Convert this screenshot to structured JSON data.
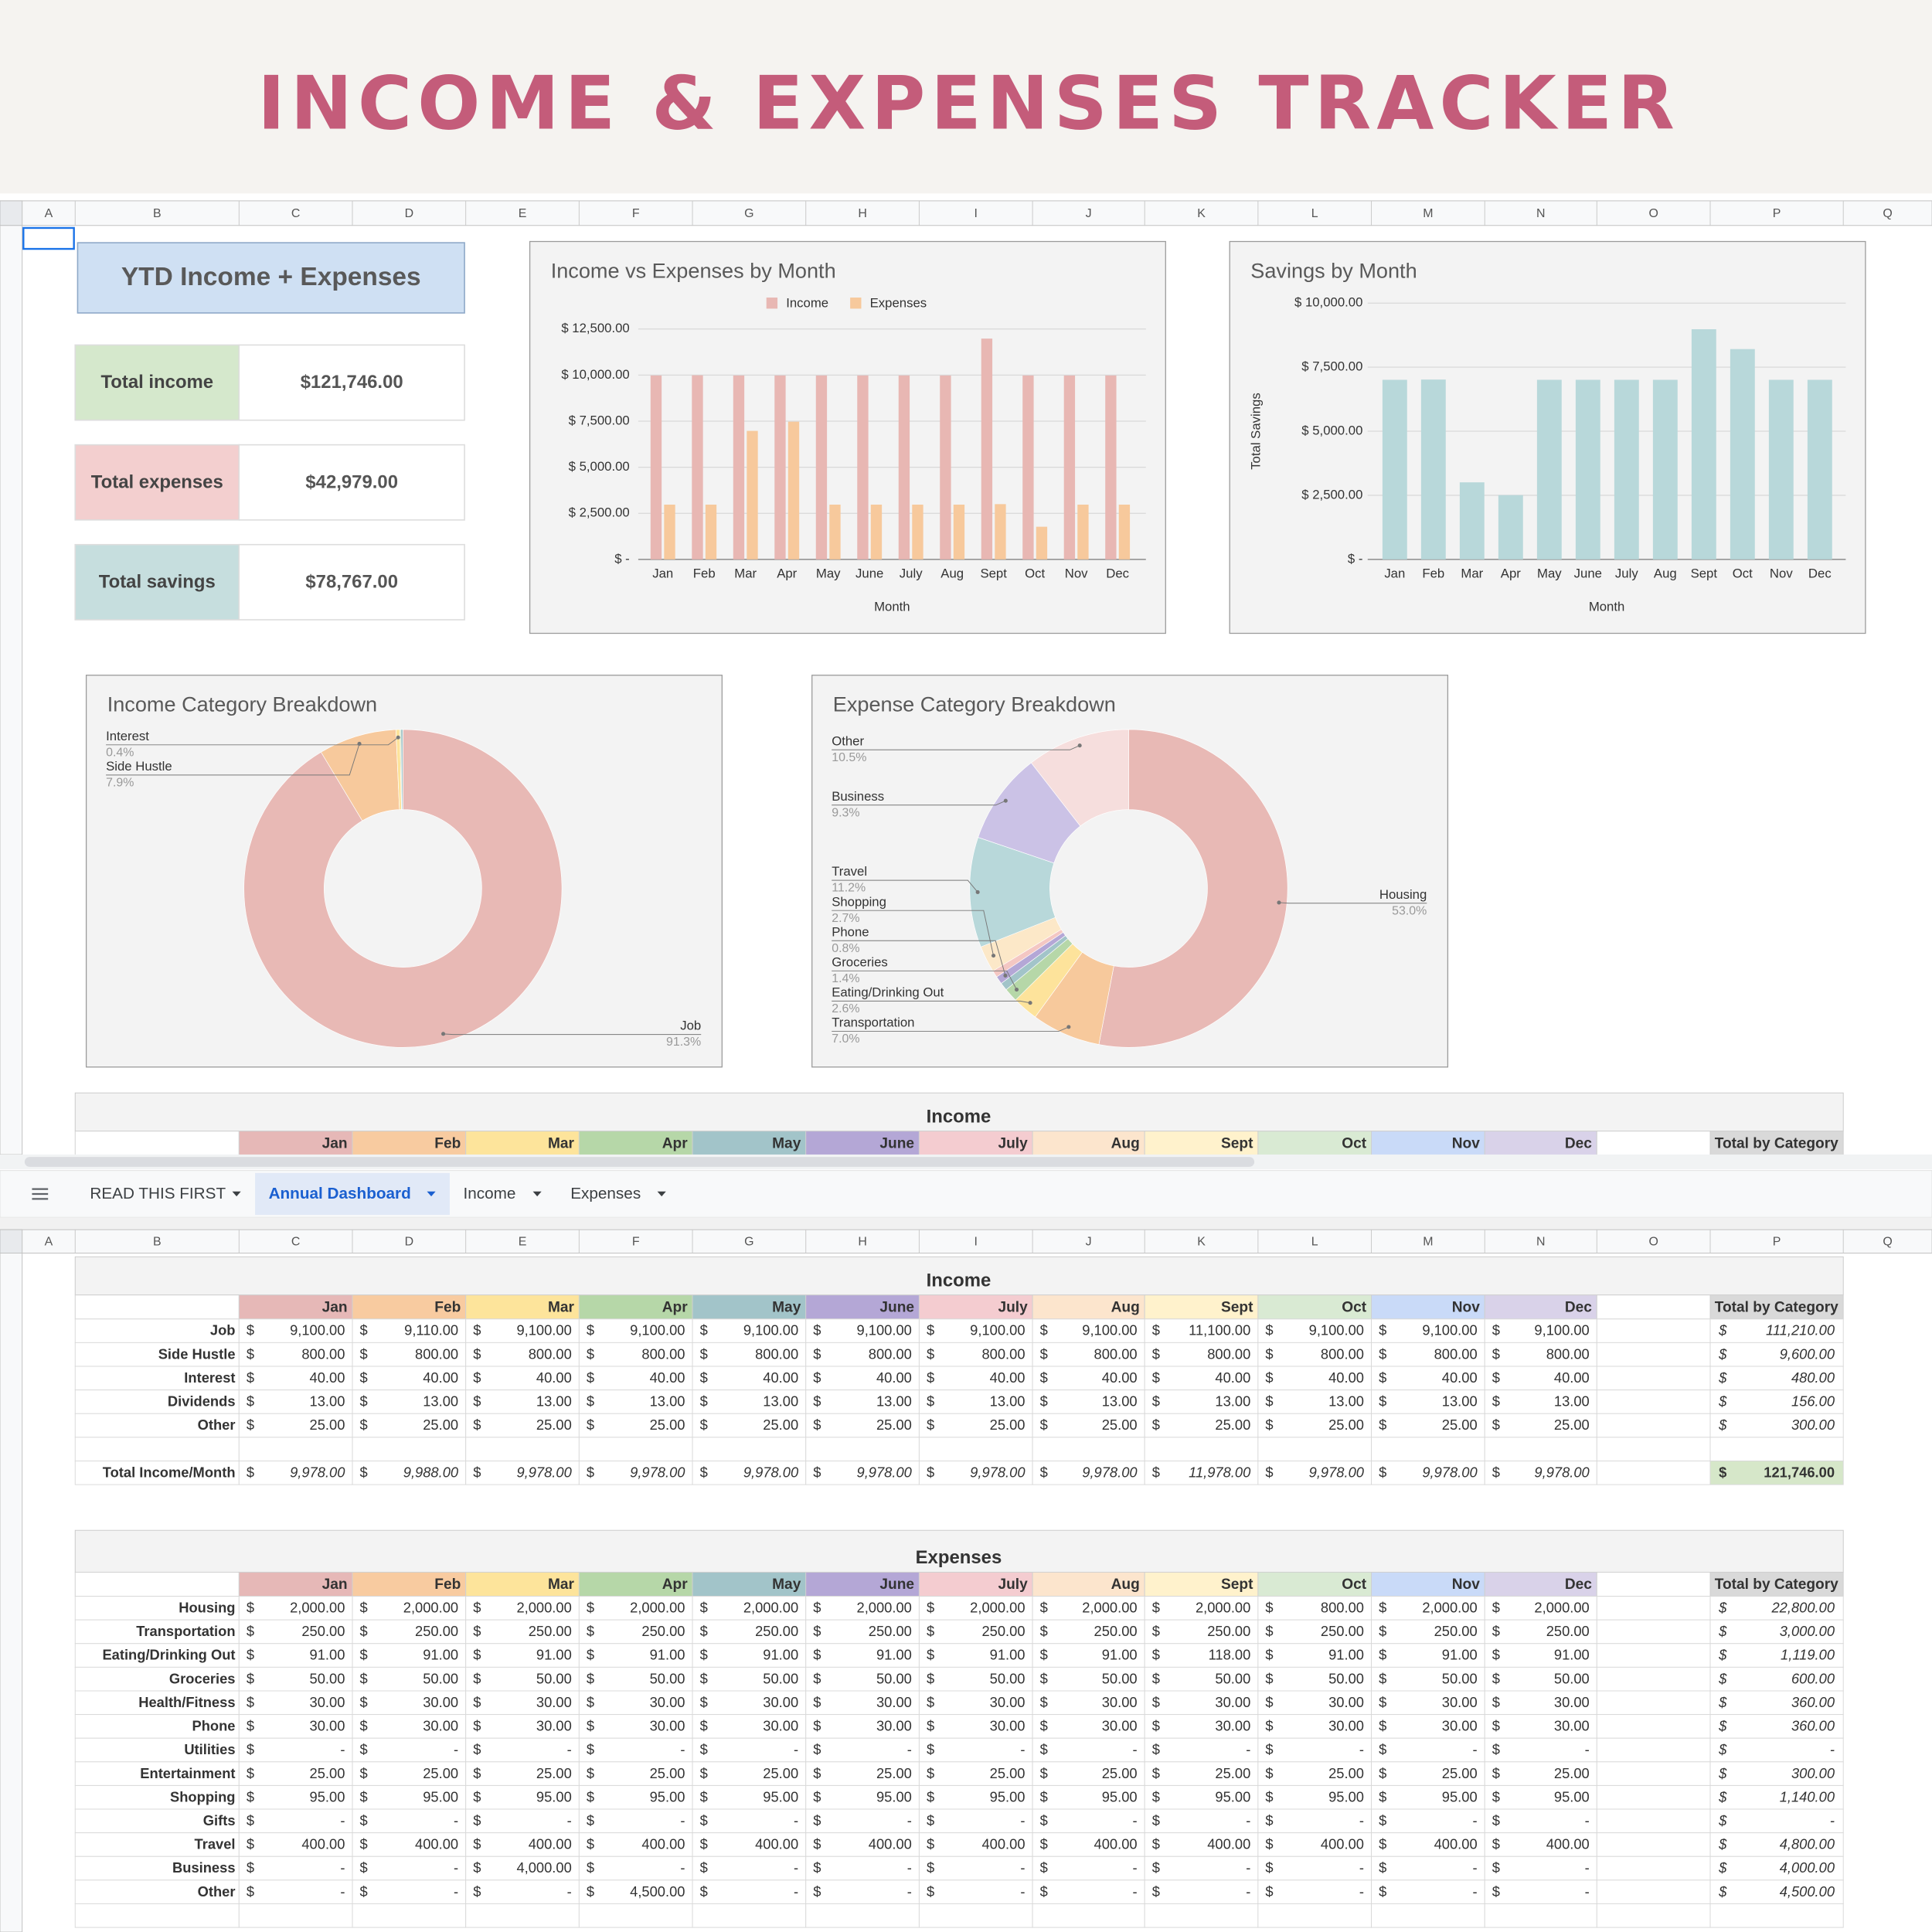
{
  "header": {
    "title": "INCOME & EXPENSES TRACKER"
  },
  "columns": [
    "A",
    "B",
    "C",
    "D",
    "E",
    "F",
    "G",
    "H",
    "I",
    "J",
    "K",
    "L",
    "M",
    "N",
    "O",
    "P",
    "Q"
  ],
  "summary": {
    "title": "YTD Income + Expenses",
    "items": [
      {
        "label": "Total income",
        "value": "$121,746.00"
      },
      {
        "label": "Total expenses",
        "value": "$42,979.00"
      },
      {
        "label": "Total savings",
        "value": "$78,767.00"
      }
    ]
  },
  "chart_data": [
    {
      "type": "bar",
      "title": "Income vs Expenses by Month",
      "x_label": "Month",
      "categories": [
        "Jan",
        "Feb",
        "Mar",
        "Apr",
        "May",
        "June",
        "July",
        "Aug",
        "Sept",
        "Oct",
        "Nov",
        "Dec"
      ],
      "series": [
        {
          "name": "Income",
          "color": "#e8b7b3",
          "values": [
            9978,
            9988,
            9978,
            9978,
            9978,
            9978,
            9978,
            9978,
            11978,
            9978,
            9978,
            9978
          ]
        },
        {
          "name": "Expenses",
          "color": "#f7c99c",
          "values": [
            2971,
            2971,
            6971,
            7471,
            2971,
            2971,
            2971,
            2971,
            2998,
            1771,
            2971,
            2971
          ]
        }
      ],
      "ylim": [
        0,
        12500
      ],
      "yticks": [
        {
          "value": 0,
          "label": "$ -"
        },
        {
          "value": 2500,
          "label": "$ 2,500.00"
        },
        {
          "value": 5000,
          "label": "$ 5,000.00"
        },
        {
          "value": 7500,
          "label": "$ 7,500.00"
        },
        {
          "value": 10000,
          "label": "$ 10,000.00"
        },
        {
          "value": 12500,
          "label": "$ 12,500.00"
        }
      ],
      "grid": true,
      "legend": "top"
    },
    {
      "type": "bar",
      "title": "Savings by Month",
      "x_label": "Month",
      "y_label": "Total Savings",
      "categories": [
        "Jan",
        "Feb",
        "Mar",
        "Apr",
        "May",
        "June",
        "July",
        "Aug",
        "Sept",
        "Oct",
        "Nov",
        "Dec"
      ],
      "values": [
        7007,
        7017,
        3007,
        2507,
        7007,
        7007,
        7007,
        7007,
        8980,
        8207,
        7007,
        7007
      ],
      "color": "#b8d8da",
      "ylim": [
        0,
        10000
      ],
      "yticks": [
        {
          "value": 0,
          "label": "$ -"
        },
        {
          "value": 2500,
          "label": "$ 2,500.00"
        },
        {
          "value": 5000,
          "label": "$ 5,000.00"
        },
        {
          "value": 7500,
          "label": "$ 7,500.00"
        },
        {
          "value": 10000,
          "label": "$ 10,000.00"
        }
      ],
      "grid": true
    },
    {
      "type": "donut",
      "title": "Income Category Breakdown",
      "categories": [
        "Job",
        "Side Hustle",
        "Interest",
        null,
        null
      ],
      "values": [
        91.3,
        7.9,
        0.4,
        0.1,
        0.2
      ],
      "value_labels": [
        "91.3%",
        "7.9%",
        "0.4%",
        null,
        null
      ],
      "colors": [
        "#e8b9b5",
        "#f7c99c",
        "#fde39b",
        "#b6d7a8",
        "#a2c4c9"
      ]
    },
    {
      "type": "donut",
      "title": "Expense Category Breakdown",
      "categories": [
        "Housing",
        "Transportation",
        "Eating/Drinking Out",
        "Groceries",
        null,
        "Phone",
        null,
        "Shopping",
        "Travel",
        "Business",
        "Other"
      ],
      "values": [
        53.0,
        7.0,
        2.6,
        1.4,
        0.8,
        0.8,
        0.7,
        2.7,
        11.2,
        9.3,
        10.5
      ],
      "value_labels": [
        "53.0%",
        "7.0%",
        "2.6%",
        "1.4%",
        null,
        "0.8%",
        null,
        "2.7%",
        "11.2%",
        "9.3%",
        "10.5%"
      ],
      "colors": [
        "#e8b9b5",
        "#f7c99c",
        "#fde39b",
        "#b6d7a8",
        "#a2c4c9",
        "#b4a7d6",
        "#f4c7c3",
        "#fce8c8",
        "#b8d8da",
        "#cbc2e6",
        "#f6dedd"
      ]
    }
  ],
  "tabs": [
    "READ THIS FIRST",
    "Annual Dashboard",
    "Income",
    "Expenses"
  ],
  "income_table": {
    "title": "Income",
    "currency": "$",
    "months": [
      "Jan",
      "Feb",
      "Mar",
      "Apr",
      "May",
      "June",
      "July",
      "Aug",
      "Sept",
      "Oct",
      "Nov",
      "Dec"
    ],
    "total_header": "Total by Category",
    "rows": [
      {
        "label": "Job",
        "values": [
          "9,100.00",
          "9,110.00",
          "9,100.00",
          "9,100.00",
          "9,100.00",
          "9,100.00",
          "9,100.00",
          "9,100.00",
          "11,100.00",
          "9,100.00",
          "9,100.00",
          "9,100.00"
        ],
        "total": "111,210.00"
      },
      {
        "label": "Side Hustle",
        "values": [
          "800.00",
          "800.00",
          "800.00",
          "800.00",
          "800.00",
          "800.00",
          "800.00",
          "800.00",
          "800.00",
          "800.00",
          "800.00",
          "800.00"
        ],
        "total": "9,600.00"
      },
      {
        "label": "Interest",
        "values": [
          "40.00",
          "40.00",
          "40.00",
          "40.00",
          "40.00",
          "40.00",
          "40.00",
          "40.00",
          "40.00",
          "40.00",
          "40.00",
          "40.00"
        ],
        "total": "480.00"
      },
      {
        "label": "Dividends",
        "values": [
          "13.00",
          "13.00",
          "13.00",
          "13.00",
          "13.00",
          "13.00",
          "13.00",
          "13.00",
          "13.00",
          "13.00",
          "13.00",
          "13.00"
        ],
        "total": "156.00"
      },
      {
        "label": "Other",
        "values": [
          "25.00",
          "25.00",
          "25.00",
          "25.00",
          "25.00",
          "25.00",
          "25.00",
          "25.00",
          "25.00",
          "25.00",
          "25.00",
          "25.00"
        ],
        "total": "300.00"
      }
    ],
    "total_row": {
      "label": "Total Income/Month",
      "values": [
        "9,978.00",
        "9,988.00",
        "9,978.00",
        "9,978.00",
        "9,978.00",
        "9,978.00",
        "9,978.00",
        "9,978.00",
        "11,978.00",
        "9,978.00",
        "9,978.00",
        "9,978.00"
      ],
      "total": "121,746.00"
    }
  },
  "expense_table": {
    "title": "Expenses",
    "currency": "$",
    "months": [
      "Jan",
      "Feb",
      "Mar",
      "Apr",
      "May",
      "June",
      "July",
      "Aug",
      "Sept",
      "Oct",
      "Nov",
      "Dec"
    ],
    "total_header": "Total by Category",
    "rows": [
      {
        "label": "Housing",
        "values": [
          "2,000.00",
          "2,000.00",
          "2,000.00",
          "2,000.00",
          "2,000.00",
          "2,000.00",
          "2,000.00",
          "2,000.00",
          "2,000.00",
          "800.00",
          "2,000.00",
          "2,000.00"
        ],
        "total": "22,800.00"
      },
      {
        "label": "Transportation",
        "values": [
          "250.00",
          "250.00",
          "250.00",
          "250.00",
          "250.00",
          "250.00",
          "250.00",
          "250.00",
          "250.00",
          "250.00",
          "250.00",
          "250.00"
        ],
        "total": "3,000.00"
      },
      {
        "label": "Eating/Drinking Out",
        "values": [
          "91.00",
          "91.00",
          "91.00",
          "91.00",
          "91.00",
          "91.00",
          "91.00",
          "91.00",
          "118.00",
          "91.00",
          "91.00",
          "91.00"
        ],
        "total": "1,119.00"
      },
      {
        "label": "Groceries",
        "values": [
          "50.00",
          "50.00",
          "50.00",
          "50.00",
          "50.00",
          "50.00",
          "50.00",
          "50.00",
          "50.00",
          "50.00",
          "50.00",
          "50.00"
        ],
        "total": "600.00"
      },
      {
        "label": "Health/Fitness",
        "values": [
          "30.00",
          "30.00",
          "30.00",
          "30.00",
          "30.00",
          "30.00",
          "30.00",
          "30.00",
          "30.00",
          "30.00",
          "30.00",
          "30.00"
        ],
        "total": "360.00"
      },
      {
        "label": "Phone",
        "values": [
          "30.00",
          "30.00",
          "30.00",
          "30.00",
          "30.00",
          "30.00",
          "30.00",
          "30.00",
          "30.00",
          "30.00",
          "30.00",
          "30.00"
        ],
        "total": "360.00"
      },
      {
        "label": "Utilities",
        "values": [
          "-",
          "-",
          "-",
          "-",
          "-",
          "-",
          "-",
          "-",
          "-",
          "-",
          "-",
          "-"
        ],
        "total": "-"
      },
      {
        "label": "Entertainment",
        "values": [
          "25.00",
          "25.00",
          "25.00",
          "25.00",
          "25.00",
          "25.00",
          "25.00",
          "25.00",
          "25.00",
          "25.00",
          "25.00",
          "25.00"
        ],
        "total": "300.00"
      },
      {
        "label": "Shopping",
        "values": [
          "95.00",
          "95.00",
          "95.00",
          "95.00",
          "95.00",
          "95.00",
          "95.00",
          "95.00",
          "95.00",
          "95.00",
          "95.00",
          "95.00"
        ],
        "total": "1,140.00"
      },
      {
        "label": "Gifts",
        "values": [
          "-",
          "-",
          "-",
          "-",
          "-",
          "-",
          "-",
          "-",
          "-",
          "-",
          "-",
          "-"
        ],
        "total": "-"
      },
      {
        "label": "Travel",
        "values": [
          "400.00",
          "400.00",
          "400.00",
          "400.00",
          "400.00",
          "400.00",
          "400.00",
          "400.00",
          "400.00",
          "400.00",
          "400.00",
          "400.00"
        ],
        "total": "4,800.00"
      },
      {
        "label": "Business",
        "values": [
          "-",
          "-",
          "4,000.00",
          "-",
          "-",
          "-",
          "-",
          "-",
          "-",
          "-",
          "-",
          "-"
        ],
        "total": "4,000.00"
      },
      {
        "label": "Other",
        "values": [
          "-",
          "-",
          "-",
          "4,500.00",
          "-",
          "-",
          "-",
          "-",
          "-",
          "-",
          "-",
          "-"
        ],
        "total": "4,500.00"
      }
    ]
  }
}
